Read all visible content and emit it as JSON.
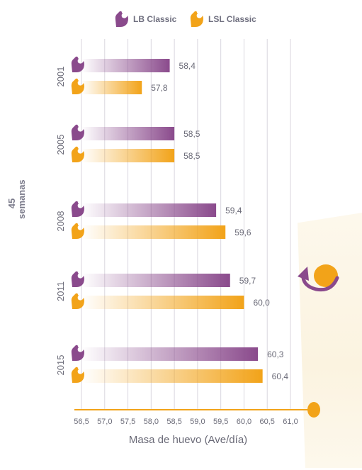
{
  "legend": [
    {
      "name": "LB Classic",
      "color": "#8a4a8c"
    },
    {
      "name": "LSL Classic",
      "color": "#f2a319"
    }
  ],
  "side_label": {
    "line1": "45",
    "line2": "semanas"
  },
  "chart_data": {
    "type": "bar",
    "orientation": "horizontal",
    "categories": [
      "2001",
      "2005",
      "2008",
      "2011",
      "2015"
    ],
    "series": [
      {
        "name": "LB Classic",
        "values": [
          58.4,
          58.5,
          59.4,
          59.7,
          60.3
        ],
        "labels": [
          "58,4",
          "58,5",
          "59,4",
          "59,7",
          "60,3"
        ],
        "color": "#8a4a8c"
      },
      {
        "name": "LSL Classic",
        "values": [
          57.8,
          58.5,
          59.6,
          60.0,
          60.4
        ],
        "labels": [
          "57,8",
          "58,5",
          "59,6",
          "60,0",
          "60,4"
        ],
        "color": "#f2a319"
      }
    ],
    "xlim": [
      56.5,
      61.0
    ],
    "xticks": [
      56.5,
      57.0,
      57.5,
      58.0,
      58.5,
      59.0,
      59.5,
      60.0,
      60.5,
      61.0
    ],
    "xtick_labels": [
      "56,5",
      "57,0",
      "57,5",
      "58,0",
      "58,5",
      "59,0",
      "59,5",
      "60,0",
      "60,5",
      "61,0"
    ],
    "xlabel": "Masa de huevo (Ave/día)",
    "grid": true
  },
  "icons": {
    "bird": "hen-icon",
    "egg": "egg-icon",
    "arrow": "curved-arrow-icon"
  }
}
